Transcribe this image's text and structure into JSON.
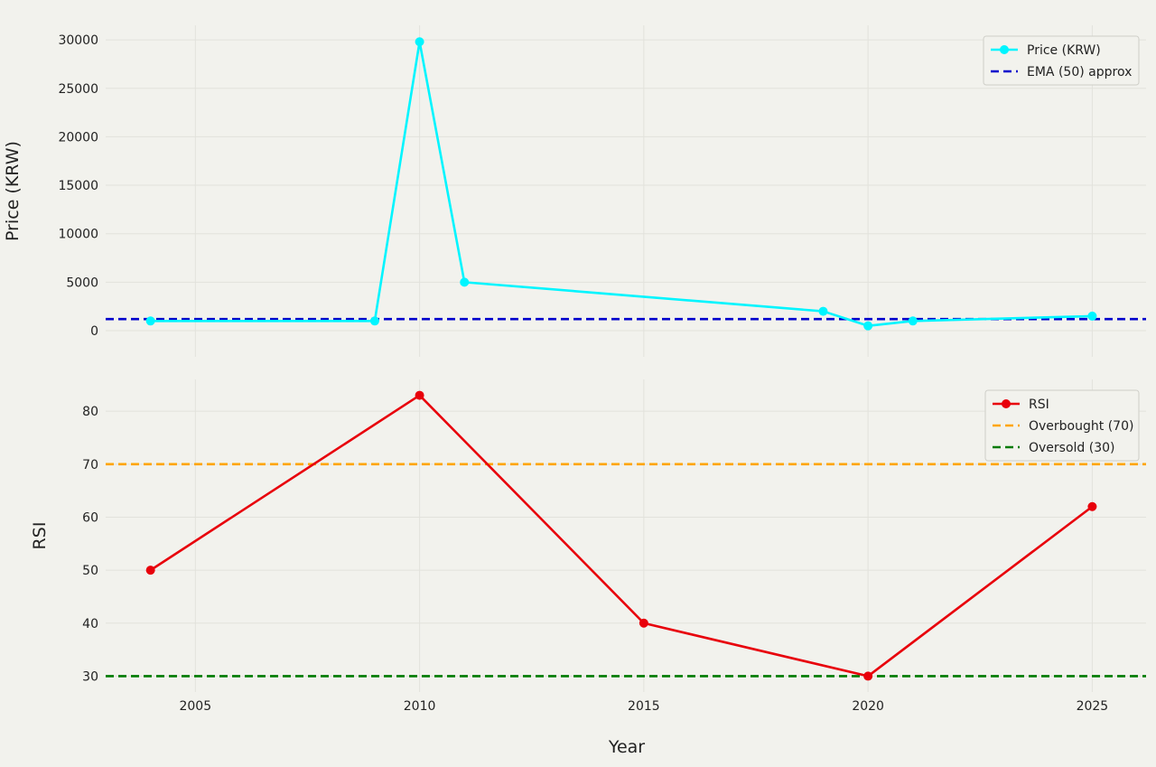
{
  "chart_data": [
    {
      "type": "line",
      "ylabel": "Price (KRW)",
      "xlim": [
        2003,
        2026.2
      ],
      "ylim": [
        -2700,
        31500
      ],
      "xticks": [
        2005,
        2010,
        2015,
        2020,
        2025
      ],
      "yticks": [
        0,
        5000,
        10000,
        15000,
        20000,
        25000,
        30000
      ],
      "grid": true,
      "legend_position": "top-right",
      "series": [
        {
          "name": "Price (KRW)",
          "color": "#00f5ff",
          "style": "solid",
          "markers": true,
          "points": [
            {
              "x": 2004,
              "y": 1000
            },
            {
              "x": 2009,
              "y": 1000
            },
            {
              "x": 2010,
              "y": 29800
            },
            {
              "x": 2011,
              "y": 5000
            },
            {
              "x": 2019,
              "y": 2000
            },
            {
              "x": 2020,
              "y": 500
            },
            {
              "x": 2021,
              "y": 1000
            },
            {
              "x": 2025,
              "y": 1500
            }
          ]
        },
        {
          "name": "EMA (50) approx",
          "color": "#0000cc",
          "style": "dashed",
          "markers": false,
          "points": [
            {
              "x": 2003,
              "y": 1200
            },
            {
              "x": 2026.2,
              "y": 1200
            }
          ]
        }
      ]
    },
    {
      "type": "line",
      "ylabel": "RSI",
      "xlabel": "Year",
      "xlim": [
        2003,
        2026.2
      ],
      "ylim": [
        27,
        86
      ],
      "xticks": [
        2005,
        2010,
        2015,
        2020,
        2025
      ],
      "yticks": [
        30,
        40,
        50,
        60,
        70,
        80
      ],
      "grid": true,
      "legend_position": "top-right",
      "series": [
        {
          "name": "RSI",
          "color": "#e8000b",
          "style": "solid",
          "markers": true,
          "points": [
            {
              "x": 2004,
              "y": 50
            },
            {
              "x": 2010,
              "y": 83
            },
            {
              "x": 2015,
              "y": 40
            },
            {
              "x": 2020,
              "y": 30
            },
            {
              "x": 2025,
              "y": 62
            }
          ]
        },
        {
          "name": "Overbought (70)",
          "color": "#ffa500",
          "style": "dashed",
          "markers": false,
          "points": [
            {
              "x": 2003,
              "y": 70
            },
            {
              "x": 2026.2,
              "y": 70
            }
          ]
        },
        {
          "name": "Oversold (30)",
          "color": "#007a00",
          "style": "dashed",
          "markers": false,
          "points": [
            {
              "x": 2003,
              "y": 30
            },
            {
              "x": 2026.2,
              "y": 30
            }
          ]
        }
      ]
    }
  ]
}
